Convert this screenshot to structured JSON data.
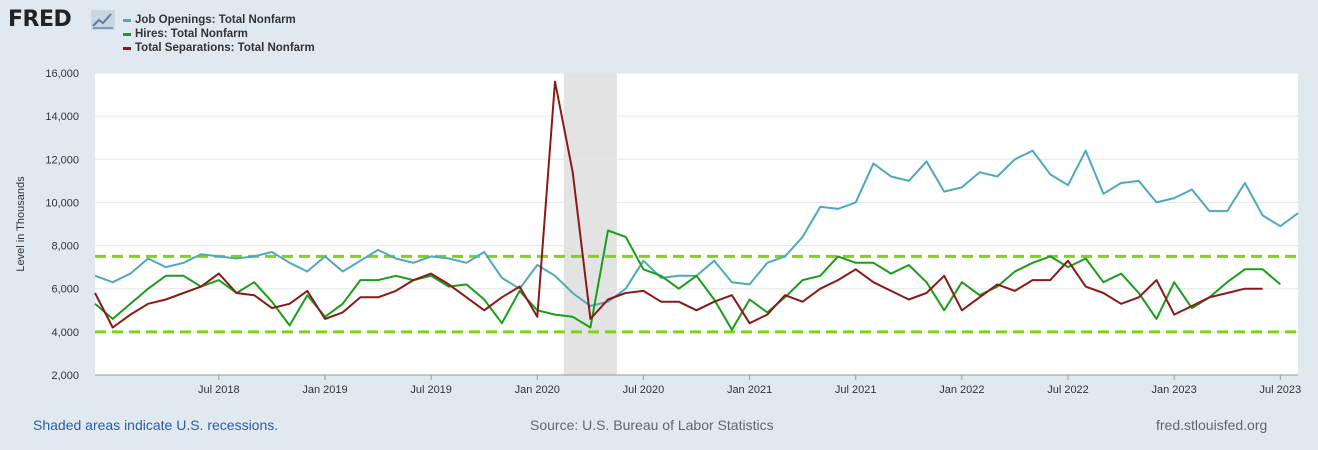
{
  "header": {
    "logo_text": "FRED"
  },
  "chart_data": {
    "type": "line",
    "ylabel": "Level in Thousands",
    "ylim": [
      2000,
      16000
    ],
    "yticks": [
      2000,
      4000,
      6000,
      8000,
      10000,
      12000,
      14000,
      16000
    ],
    "ytick_labels": [
      "2,000",
      "4,000",
      "6,000",
      "8,000",
      "10,000",
      "12,000",
      "14,000",
      "16,000"
    ],
    "xlim": [
      "2017-12",
      "2023-08"
    ],
    "xtick_labels": [
      {
        "month": "2018-07",
        "label": "Jul 2018"
      },
      {
        "month": "2019-01",
        "label": "Jan 2019"
      },
      {
        "month": "2019-07",
        "label": "Jul 2019"
      },
      {
        "month": "2020-01",
        "label": "Jan 2020"
      },
      {
        "month": "2020-07",
        "label": "Jul 2020"
      },
      {
        "month": "2021-01",
        "label": "Jan 2021"
      },
      {
        "month": "2021-07",
        "label": "Jul 2021"
      },
      {
        "month": "2022-01",
        "label": "Jan 2022"
      },
      {
        "month": "2022-07",
        "label": "Jul 2022"
      },
      {
        "month": "2023-01",
        "label": "Jan 2023"
      },
      {
        "month": "2023-07",
        "label": "Jul 2023"
      }
    ],
    "grid": "horizontal",
    "legend_position": "top-left",
    "x_start": "2017-12",
    "recessions": [
      {
        "start": "2020-03",
        "end": "2020-04"
      }
    ],
    "reference_lines": [
      {
        "value": 7500,
        "color": "#7ed321"
      },
      {
        "value": 4000,
        "color": "#7ed321"
      }
    ],
    "series": [
      {
        "name": "Job Openings: Total Nonfarm",
        "color": "#4eaab8",
        "values": [
          6600,
          6300,
          6700,
          7400,
          7000,
          7200,
          7600,
          7500,
          7400,
          7500,
          7700,
          7200,
          6800,
          7500,
          6800,
          7300,
          7800,
          7400,
          7200,
          7500,
          7400,
          7200,
          7700,
          6500,
          6000,
          7100,
          6600,
          5800,
          5200,
          5400,
          6000,
          7300,
          6500,
          6600,
          6600,
          7300,
          6300,
          6200,
          7200,
          7500,
          8400,
          9800,
          9700,
          10000,
          11800,
          11200,
          11000,
          11900,
          10500,
          10700,
          11400,
          11200,
          12000,
          12400,
          11300,
          10800,
          12400,
          10400,
          10900,
          11000,
          10000,
          10200,
          10600,
          9600,
          9600,
          10900,
          9400,
          8900,
          9500
        ]
      },
      {
        "name": "Hires: Total Nonfarm",
        "color": "#1a9e1a",
        "values": [
          5300,
          4600,
          5300,
          6000,
          6600,
          6600,
          6100,
          6400,
          5800,
          6300,
          5400,
          4300,
          5700,
          4700,
          5300,
          6400,
          6400,
          6600,
          6400,
          6600,
          6100,
          6200,
          5500,
          4400,
          5900,
          5000,
          4800,
          4700,
          4200,
          8700,
          8400,
          6900,
          6600,
          6000,
          6600,
          5500,
          4100,
          5500,
          4900,
          5600,
          6400,
          6600,
          7500,
          7200,
          7200,
          6700,
          7100,
          6300,
          5000,
          6300,
          5700,
          6100,
          6800,
          7200,
          7500,
          7000,
          7400,
          6300,
          6700,
          5800,
          4600,
          6300,
          5100,
          5600,
          6300,
          6900,
          6900,
          6200
        ]
      },
      {
        "name": "Total Separations: Total Nonfarm",
        "color": "#8a1a1a",
        "values": [
          5800,
          4200,
          4800,
          5300,
          5500,
          5800,
          6100,
          6700,
          5800,
          5700,
          5100,
          5300,
          5900,
          4600,
          4900,
          5600,
          5600,
          5900,
          6400,
          6700,
          6200,
          5600,
          5000,
          5600,
          6100,
          4700,
          15600,
          11400,
          4600,
          5500,
          5800,
          5900,
          5400,
          5400,
          5000,
          5400,
          5700,
          4400,
          4800,
          5700,
          5400,
          6000,
          6400,
          6900,
          6300,
          5900,
          5500,
          5800,
          6600,
          5000,
          5600,
          6200,
          5900,
          6400,
          6400,
          7300,
          6100,
          5800,
          5300,
          5600,
          6400,
          4800,
          5200,
          5600,
          5800,
          6000,
          6000
        ]
      }
    ]
  },
  "footer": {
    "recession_note": "Shaded areas indicate U.S. recessions.",
    "source": "Source: U.S. Bureau of Labor Statistics",
    "site": "fred.stlouisfed.org"
  }
}
